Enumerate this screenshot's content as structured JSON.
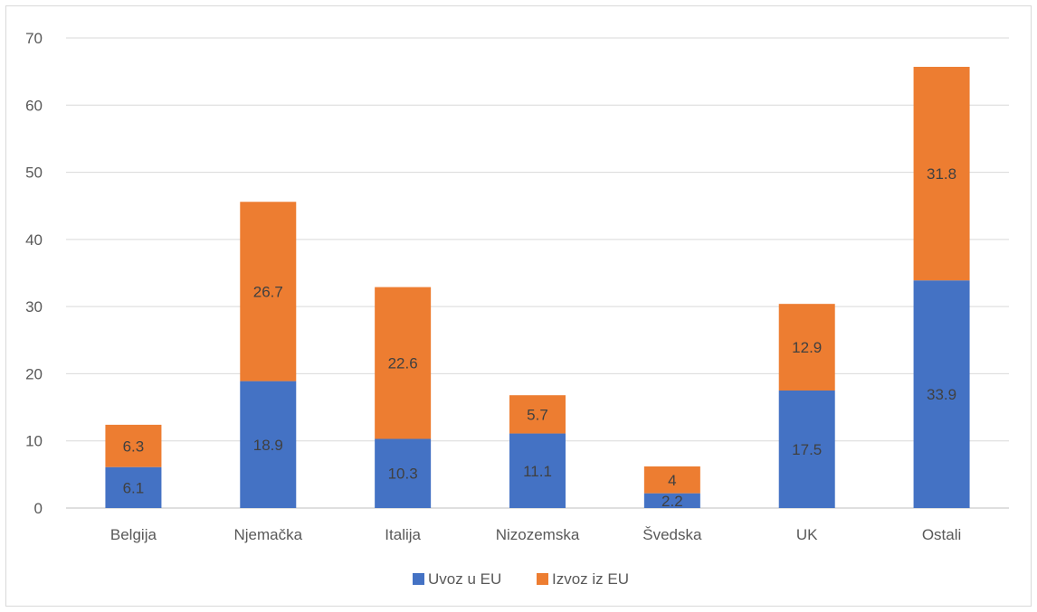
{
  "chart_data": {
    "type": "bar",
    "stacked": true,
    "categories": [
      "Belgija",
      "Njemačka",
      "Italija",
      "Nizozemska",
      "Švedska",
      "UK",
      "Ostali"
    ],
    "series": [
      {
        "name": "Uvoz u EU",
        "color": "#4472C4",
        "values": [
          6.1,
          18.9,
          10.3,
          11.1,
          2.2,
          17.5,
          33.9
        ]
      },
      {
        "name": "Izvoz iz EU",
        "color": "#ED7D31",
        "values": [
          6.3,
          26.7,
          22.6,
          5.7,
          4,
          12.9,
          31.8
        ]
      }
    ],
    "ylim": [
      0,
      70
    ],
    "yticks": [
      0,
      10,
      20,
      30,
      40,
      50,
      60,
      70
    ],
    "grid": true,
    "legend_position": "bottom",
    "data_labels": true,
    "title": "",
    "xlabel": "",
    "ylabel": ""
  }
}
